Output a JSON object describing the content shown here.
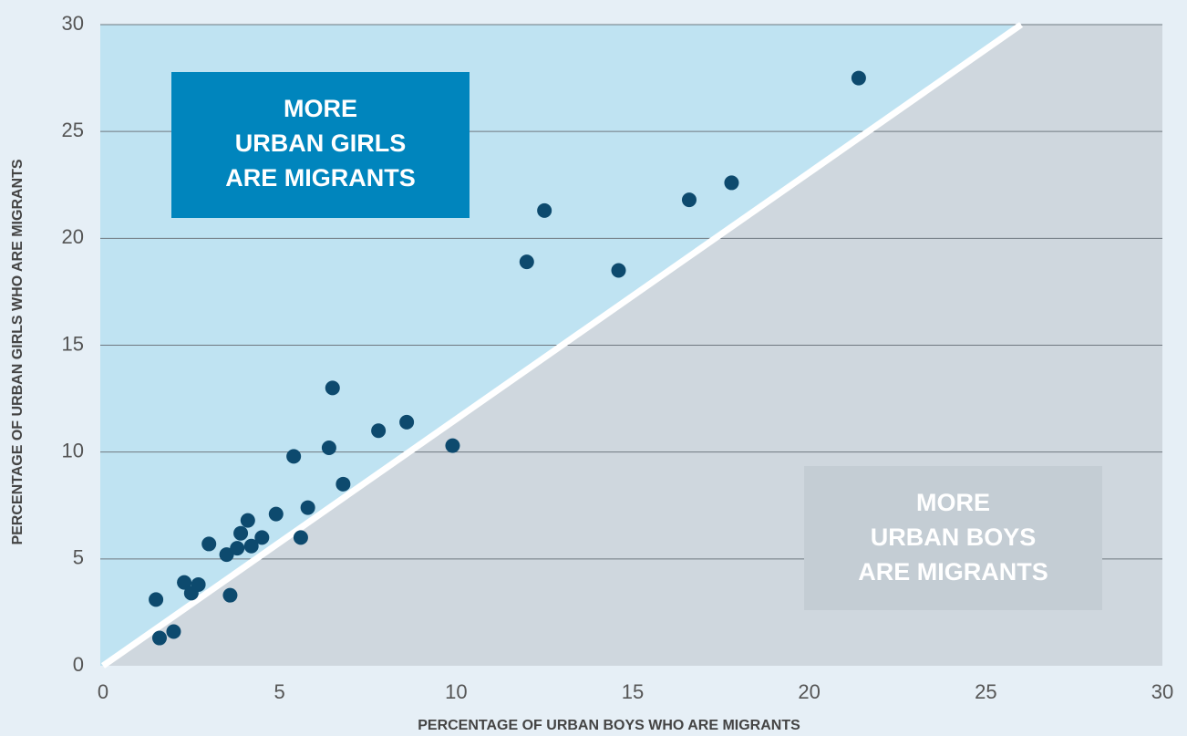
{
  "chart_data": {
    "type": "scatter",
    "x_label": "PERCENTAGE OF URBAN BOYS WHO ARE MIGRANTS",
    "y_label": "PERCENTAGE OF URBAN GIRLS WHO ARE MIGRANTS",
    "xlim": [
      0,
      30
    ],
    "ylim": [
      0,
      30
    ],
    "xticks": [
      0,
      5,
      10,
      15,
      20,
      25,
      30
    ],
    "yticks": [
      0,
      5,
      10,
      15,
      20,
      25,
      30
    ],
    "grid": true,
    "color": "#0d4a6e",
    "diagonal": {
      "x": [
        0,
        26
      ],
      "y": [
        0,
        30
      ]
    },
    "series": [
      {
        "x": [
          1.5,
          1.6,
          2.0,
          2.3,
          2.5,
          2.7,
          3.0,
          3.5,
          3.6,
          3.8,
          3.9,
          4.1,
          4.2,
          4.5,
          4.9,
          5.4,
          5.6,
          5.8,
          6.4,
          6.5,
          6.8,
          7.8,
          8.6,
          9.9,
          12.0,
          12.5,
          14.6,
          16.6,
          17.8,
          21.4
        ],
        "values": [
          3.1,
          1.3,
          1.6,
          3.9,
          3.4,
          3.8,
          5.7,
          5.2,
          3.3,
          5.5,
          6.2,
          6.8,
          5.6,
          6.0,
          7.1,
          9.8,
          6.0,
          7.4,
          10.2,
          13.0,
          8.5,
          11.0,
          11.4,
          10.3,
          18.9,
          21.3,
          18.5,
          21.8,
          22.6,
          27.5
        ]
      }
    ],
    "annotations": [
      {
        "lines": [
          "MORE",
          "URBAN GIRLS",
          "ARE MIGRANTS"
        ],
        "color": "#0085bd"
      },
      {
        "lines": [
          "MORE",
          "URBAN BOYS",
          "ARE MIGRANTS"
        ],
        "color": "#c4cdd4"
      }
    ]
  }
}
